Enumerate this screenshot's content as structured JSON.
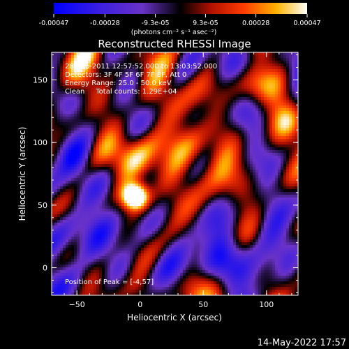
{
  "chart_data": {
    "type": "heatmap",
    "title": "Reconstructed RHESSI Image",
    "xlabel": "Heliocentric X (arcsec)",
    "ylabel": "Heliocentric Y (arcsec)",
    "xlim": [
      -70,
      125
    ],
    "ylim": [
      -22,
      172
    ],
    "x_ticks": [
      -50,
      0,
      50,
      100
    ],
    "y_ticks": [
      0,
      50,
      100,
      150
    ],
    "info_lines": [
      "28-Sep-2011 12:57:52.000 to 13:03:52.000",
      "Detectors: 3F 4F 5F 6F 7F 8F, Att 0",
      "Energy Range: 25.0 - 50.0 keV",
      "Clean     Total counts: 1.29E+04"
    ],
    "peak_label": "Position of Peak = [-4,57]",
    "peak": {
      "x": -4,
      "y": 57
    },
    "colorbar": {
      "range": [
        -0.00047,
        0.00047
      ],
      "tick_values": [
        -0.00047,
        -0.00028,
        -9.3e-05,
        9.3e-05,
        0.00028,
        0.00047
      ],
      "tick_labels": [
        "-0.00047",
        "-0.00028",
        "-9.3e-05",
        "9.3e-05",
        "0.00028",
        "0.00047"
      ],
      "unit_label": "(photons cm⁻² s⁻¹ asec⁻²)",
      "colors": [
        "#0000ff",
        "#6a32c8",
        "#000000",
        "#c81e00",
        "#ff8c00",
        "#ffffff"
      ]
    },
    "footer_date": "14-May-2022 17:57"
  }
}
